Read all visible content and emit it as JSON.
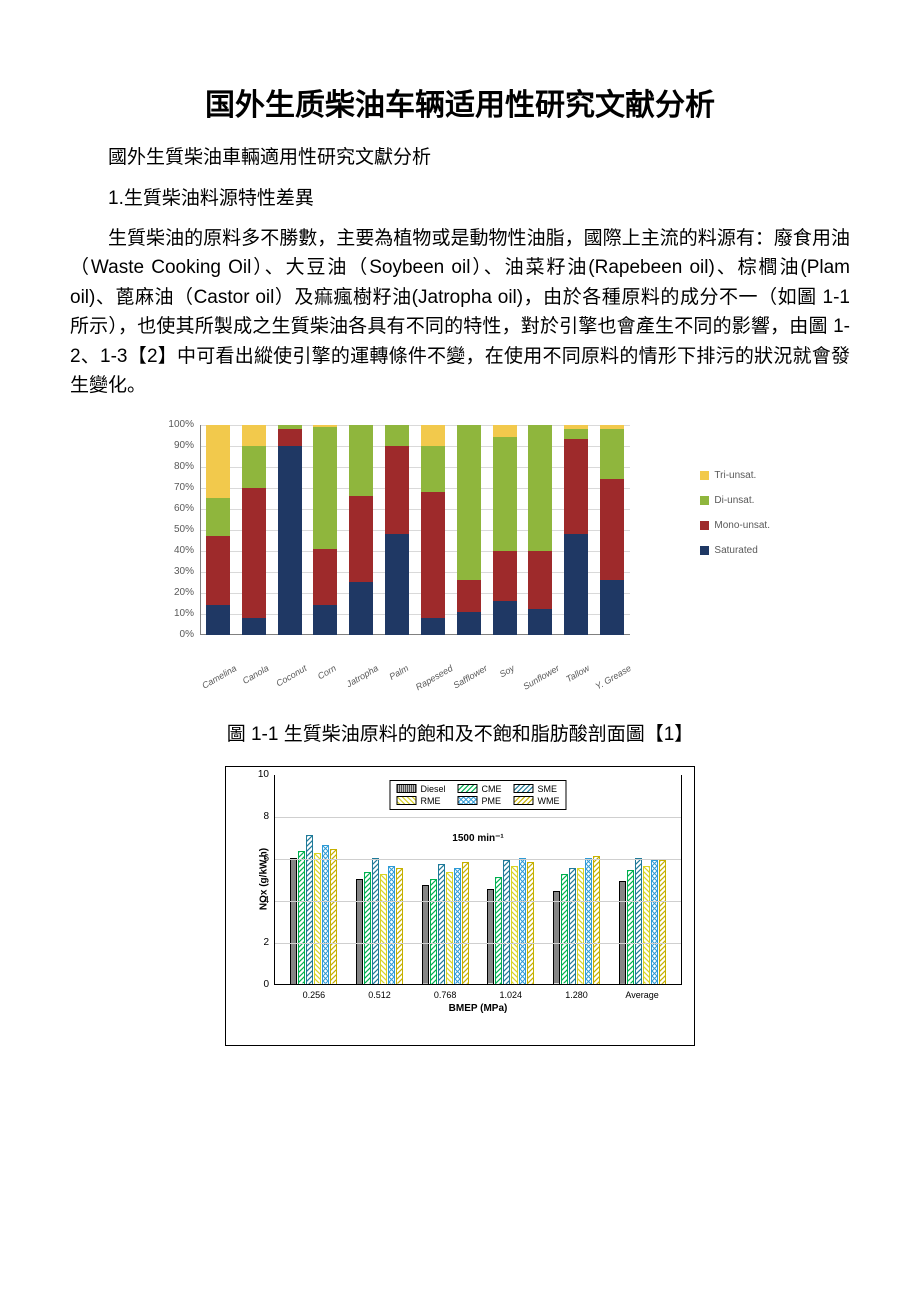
{
  "title": "国外生质柴油车辆适用性研究文献分析",
  "subtitle": "國外生質柴油車輛適用性研究文獻分析",
  "section_heading": "1.生質柴油料源特性差異",
  "body_text": "生質柴油的原料多不勝數，主要為植物或是動物性油脂，國際上主流的料源有：廢食用油（Waste Cooking Oil）、大豆油（Soybeen oil）、油菜籽油(Rapebeen oil)、棕櫚油(Plam oil)、蓖麻油（Castor oil）及痲瘋樹籽油(Jatropha oil)，由於各種原料的成分不一（如圖 1-1 所示），也使其所製成之生質柴油各具有不同的特性，對於引擎也會產生不同的影響，由圖 1-2、1-3【2】中可看出縱使引擎的運轉條件不變，在使用不同原料的情形下排污的狀況就會發生變化。",
  "caption1": "圖 1-1 生質柴油原料的飽和及不飽和脂肪酸剖面圖【1】",
  "chart1": {
    "type": "stacked-bar",
    "yticks": [
      "0%",
      "10%",
      "20%",
      "30%",
      "40%",
      "50%",
      "60%",
      "70%",
      "80%",
      "90%",
      "100%"
    ],
    "categories": [
      "Camelina",
      "Canola",
      "Coconut",
      "Corn",
      "Jatropha",
      "Palm",
      "Rapeseed",
      "Safflower",
      "Soy",
      "Sunflower",
      "Tallow",
      "Y. Grease"
    ],
    "segments": [
      "Saturated",
      "Mono-unsat.",
      "Di-unsat.",
      "Tri-unsat."
    ],
    "colors": {
      "Saturated": "#1f3864",
      "Mono-unsat.": "#9e2a2b",
      "Di-unsat.": "#8fb63d",
      "Tri-unsat.": "#f2c94c"
    },
    "data": [
      [
        14,
        33,
        18,
        35
      ],
      [
        8,
        62,
        20,
        10
      ],
      [
        90,
        8,
        2,
        0
      ],
      [
        14,
        27,
        58,
        1
      ],
      [
        25,
        41,
        34,
        0
      ],
      [
        48,
        42,
        10,
        0
      ],
      [
        8,
        60,
        22,
        10
      ],
      [
        11,
        15,
        74,
        0
      ],
      [
        16,
        24,
        54,
        6
      ],
      [
        12,
        28,
        60,
        0
      ],
      [
        48,
        45,
        5,
        2
      ],
      [
        26,
        48,
        24,
        2
      ]
    ]
  },
  "chart2": {
    "type": "grouped-bar",
    "ylabel": "NOx (g/kW.h)",
    "xlabel": "BMEP (MPa)",
    "ylim": [
      0,
      10
    ],
    "ystep": 2,
    "annotation": "1500 min⁻¹",
    "categories": [
      "0.256",
      "0.512",
      "0.768",
      "1.024",
      "1.280",
      "Average"
    ],
    "series": [
      {
        "name": "Diesel",
        "fill": "#ffffff",
        "pattern": "grid",
        "color": "#000000"
      },
      {
        "name": "CME",
        "fill": "#ffffff",
        "pattern": "diag",
        "color": "#00b050"
      },
      {
        "name": "SME",
        "fill": "#ffffff",
        "pattern": "diag",
        "color": "#1f7a99"
      },
      {
        "name": "RME",
        "fill": "#ffffff",
        "pattern": "rdiag",
        "color": "#d9d326"
      },
      {
        "name": "PME",
        "fill": "#ffffff",
        "pattern": "cross",
        "color": "#2e9bd6"
      },
      {
        "name": "WME",
        "fill": "#ffffff",
        "pattern": "diag",
        "color": "#c5b000"
      }
    ],
    "data": [
      [
        6.0,
        6.3,
        7.1,
        6.2,
        6.6,
        6.4
      ],
      [
        5.0,
        5.3,
        6.0,
        5.2,
        5.6,
        5.5
      ],
      [
        4.7,
        5.0,
        5.7,
        5.3,
        5.5,
        5.8
      ],
      [
        4.5,
        5.1,
        5.9,
        5.6,
        6.0,
        5.8
      ],
      [
        4.4,
        5.2,
        5.5,
        5.5,
        6.0,
        6.1
      ],
      [
        4.9,
        5.4,
        6.0,
        5.6,
        5.9,
        5.9
      ]
    ]
  }
}
